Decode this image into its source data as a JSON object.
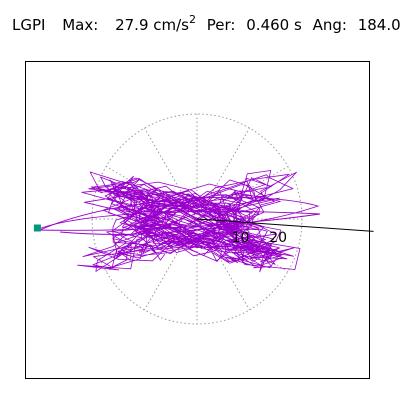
{
  "header": {
    "station": "LGPI",
    "max_label": "Max:",
    "max_value": "27.9 cm/s",
    "max_unit_exp": "2",
    "period_label": "Per:",
    "period_value": "0.460 s",
    "angle_label": "Ang:",
    "angle_value": "184.0"
  },
  "colors": {
    "trace": "#9900cc",
    "grid": "#999999",
    "marker": "#009977",
    "frame": "#000000"
  },
  "chart_data": {
    "type": "polar-particle-motion",
    "radial_ticks": [
      {
        "value": 10,
        "label": "10"
      },
      {
        "value": 20,
        "label": "20"
      }
    ],
    "radial_max": 27.9,
    "spokes_deg": [
      0,
      30,
      60,
      90,
      120,
      150,
      180,
      210,
      240,
      270,
      300,
      330
    ],
    "direction_angle_deg": 184.0,
    "max_amplitude": 27.9
  }
}
